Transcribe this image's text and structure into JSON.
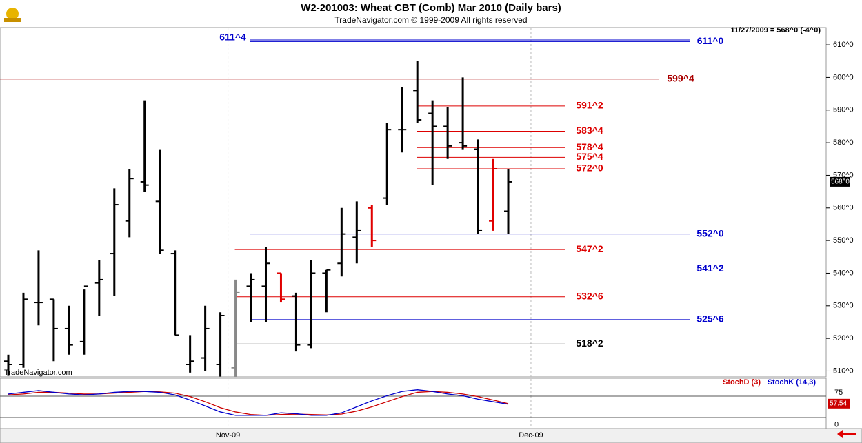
{
  "chart_data": [
    {
      "type": "ohlc",
      "title": "W2-201003:  Wheat CBT (Comb) Mar 2010  (Daily bars)",
      "subtitle": "TradeNavigator.com © 1999-2009 All rights reserved",
      "info": "11/27/2009 = 568^0 (-4^0)",
      "watermark": "TradeNavigator.com",
      "categories": [
        null,
        null,
        null,
        null,
        null,
        null,
        null,
        null,
        null,
        null,
        null,
        null,
        null,
        null,
        null,
        null,
        null,
        null,
        null,
        null,
        null,
        null,
        null,
        null,
        null,
        null,
        null,
        null,
        null,
        null,
        null,
        null,
        null,
        null
      ],
      "xticks": [
        {
          "value": 14.5,
          "label": "Nov-09"
        },
        {
          "value": 34.5,
          "label": "Dec-09"
        }
      ],
      "open": [
        513,
        512,
        531,
        532,
        523,
        519,
        537,
        546,
        556,
        568,
        562,
        546,
        512,
        514,
        512,
        511,
        536,
        536,
        540,
        533,
        518,
        540,
        543,
        551,
        560,
        563,
        584,
        596,
        589,
        585,
        580,
        578,
        556,
        559
      ],
      "high": [
        515,
        534,
        547,
        532,
        530,
        535,
        544,
        566,
        572,
        593,
        578,
        547,
        521,
        530,
        528,
        538,
        540,
        548,
        540,
        534,
        544,
        541,
        560,
        562,
        561,
        586,
        597,
        605,
        593,
        591,
        600,
        581,
        575,
        572
      ],
      "low": [
        508.5,
        511,
        524,
        513,
        515,
        515,
        527,
        533,
        551,
        565,
        546,
        521,
        509.5,
        510,
        508.3,
        508.3,
        525,
        525,
        531,
        516,
        517,
        528,
        539,
        543,
        548,
        561,
        577,
        586,
        567,
        575,
        578,
        552,
        553,
        552
      ],
      "close": [
        512,
        532,
        531,
        523,
        518,
        536,
        538,
        561,
        569,
        567,
        547,
        521,
        513,
        523,
        527,
        534,
        538,
        543,
        532,
        518,
        540,
        541,
        552,
        553,
        550,
        584,
        584,
        587,
        585,
        579,
        579,
        553,
        572,
        568
      ],
      "colors": [
        "#000",
        "#000",
        "#000",
        "#000",
        "#000",
        "#000",
        "#000",
        "#000",
        "#000",
        "#000",
        "#000",
        "#000",
        "#000",
        "#000",
        "#000",
        "#888",
        "#000",
        "#000",
        "#e00000",
        "#000",
        "#000",
        "#000",
        "#000",
        "#000",
        "#e00000",
        "#000",
        "#000",
        "#000",
        "#000",
        "#000",
        "#000",
        "#000",
        "#e00000",
        "#000"
      ],
      "last_price": {
        "value": 568,
        "label": "568^0"
      },
      "ylim": [
        508.2,
        615.3
      ],
      "yticks": [
        {
          "value": 610,
          "label": "610^0"
        },
        {
          "value": 600,
          "label": "600^0"
        },
        {
          "value": 590,
          "label": "590^0"
        },
        {
          "value": 580,
          "label": "580^0"
        },
        {
          "value": 570,
          "label": "570^0"
        },
        {
          "value": 560,
          "label": "560^0"
        },
        {
          "value": 550,
          "label": "550^0"
        },
        {
          "value": 540,
          "label": "540^0"
        },
        {
          "value": 530,
          "label": "530^0"
        },
        {
          "value": 520,
          "label": "520^0"
        },
        {
          "value": 510,
          "label": "510^0"
        }
      ],
      "hlines": [
        {
          "value": 611.5,
          "label": "611^4",
          "color": "#0000cc",
          "start": 16,
          "label_side": "left"
        },
        {
          "value": 611,
          "label": "611^0",
          "color": "#0000cc",
          "start": 16,
          "label_side": "right"
        },
        {
          "value": 599.5,
          "label": "599^4",
          "color": "#aa0000",
          "start": null,
          "label_side": "right"
        },
        {
          "value": 591.25,
          "label": "591^2",
          "color": "#dd0000",
          "start": 27,
          "label_side": "right"
        },
        {
          "value": 583.5,
          "label": "583^4",
          "color": "#dd0000",
          "start": 27,
          "label_side": "right"
        },
        {
          "value": 578.5,
          "label": "578^4",
          "color": "#dd0000",
          "start": 27,
          "label_side": "right"
        },
        {
          "value": 575.5,
          "label": "575^4",
          "color": "#dd0000",
          "start": 27,
          "label_side": "right"
        },
        {
          "value": 572,
          "label": "572^0",
          "color": "#dd0000",
          "start": 27,
          "label_side": "right"
        },
        {
          "value": 552,
          "label": "552^0",
          "color": "#0000cc",
          "start": 16,
          "label_side": "right"
        },
        {
          "value": 547.25,
          "label": "547^2",
          "color": "#dd0000",
          "start": 15,
          "label_side": "right"
        },
        {
          "value": 541.25,
          "label": "541^2",
          "color": "#0000cc",
          "start": 16,
          "label_side": "right"
        },
        {
          "value": 532.75,
          "label": "532^6",
          "color": "#dd0000",
          "start": 15,
          "label_side": "right"
        },
        {
          "value": 525.75,
          "label": "525^6",
          "color": "#0000cc",
          "start": 16,
          "label_side": "right"
        },
        {
          "value": 518.25,
          "label": "518^2",
          "color": "#000000",
          "start": 15,
          "label_side": "right"
        }
      ]
    },
    {
      "type": "line",
      "ylim": [
        0,
        100
      ],
      "yticks": [
        0,
        75
      ],
      "hlines": [
        75,
        25
      ],
      "series": [
        {
          "name": "StochD (3)",
          "color": "#cc0000",
          "values": [
            78,
            80,
            84,
            84,
            82,
            80,
            80,
            82,
            84,
            86,
            85,
            82,
            74,
            62,
            48,
            38,
            32,
            30,
            32,
            33,
            32,
            31,
            33,
            40,
            50,
            62,
            74,
            84,
            86,
            84,
            80,
            74,
            66,
            57.54
          ],
          "last_label": "57.54"
        },
        {
          "name": "StochK (14,3)",
          "color": "#0000cc",
          "values": [
            80,
            84,
            88,
            84,
            80,
            78,
            80,
            84,
            86,
            86,
            84,
            78,
            66,
            52,
            38,
            30,
            30,
            30,
            36,
            34,
            30,
            30,
            36,
            50,
            64,
            76,
            86,
            90,
            86,
            80,
            76,
            68,
            62,
            56
          ]
        }
      ]
    }
  ]
}
